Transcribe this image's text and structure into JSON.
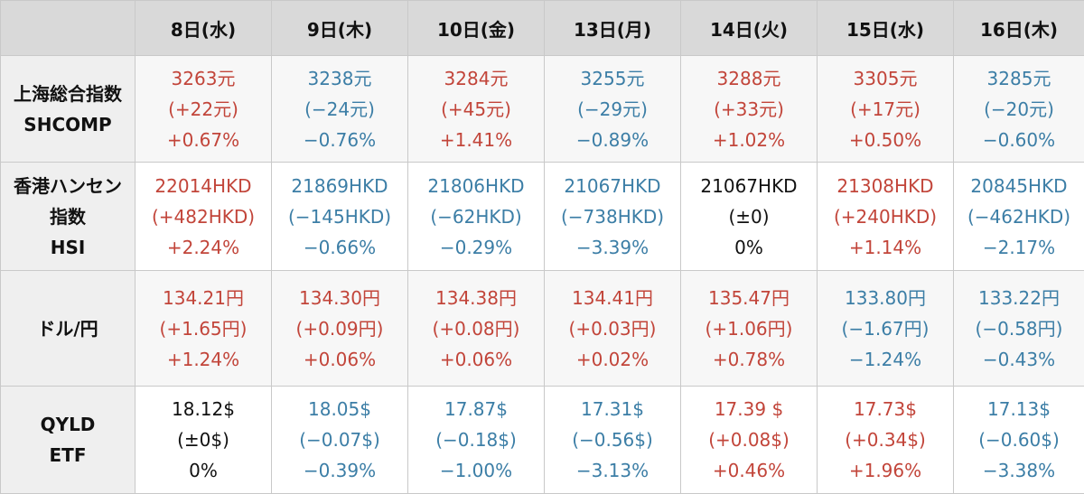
{
  "dates": [
    "8日(水)",
    "9日(木)",
    "10日(金)",
    "13日(月)",
    "14日(火)",
    "15日(水)",
    "16日(木)"
  ],
  "colors": {
    "up": "#c2453a",
    "down": "#3c7ea6",
    "flat": "#111111",
    "header_bg": "#d9d9d9",
    "label_bg": "#efefef"
  },
  "rows": [
    {
      "label_lines": [
        "上海総合指数",
        "SHCOMP"
      ],
      "cells": [
        {
          "trend": "up",
          "value": "3263元",
          "change": "(+22元)",
          "pct": "+0.67%"
        },
        {
          "trend": "down",
          "value": "3238元",
          "change": "(−24元)",
          "pct": "−0.76%"
        },
        {
          "trend": "up",
          "value": "3284元",
          "change": "(+45元)",
          "pct": "+1.41%"
        },
        {
          "trend": "down",
          "value": "3255元",
          "change": "(−29元)",
          "pct": "−0.89%"
        },
        {
          "trend": "up",
          "value": "3288元",
          "change": "(+33元)",
          "pct": "+1.02%"
        },
        {
          "trend": "up",
          "value": "3305元",
          "change": "(+17元)",
          "pct": "+0.50%"
        },
        {
          "trend": "down",
          "value": "3285元",
          "change": "(−20元)",
          "pct": "−0.60%"
        }
      ]
    },
    {
      "label_lines": [
        "香港ハンセン",
        "指数",
        "HSI"
      ],
      "cells": [
        {
          "trend": "up",
          "value": "22014HKD",
          "change": "(+482HKD)",
          "pct": "+2.24%"
        },
        {
          "trend": "down",
          "value": "21869HKD",
          "change": "(−145HKD)",
          "pct": "−0.66%"
        },
        {
          "trend": "down",
          "value": "21806HKD",
          "change": "(−62HKD)",
          "pct": "−0.29%"
        },
        {
          "trend": "down",
          "value": "21067HKD",
          "change": "(−738HKD)",
          "pct": "−3.39%"
        },
        {
          "trend": "flat",
          "value": "21067HKD",
          "change": "(±0)",
          "pct": "0%"
        },
        {
          "trend": "up",
          "value": "21308HKD",
          "change": "(+240HKD)",
          "pct": "+1.14%"
        },
        {
          "trend": "down",
          "value": "20845HKD",
          "change": "(−462HKD)",
          "pct": "−2.17%"
        }
      ]
    },
    {
      "label_lines": [
        "ドル/円"
      ],
      "cells": [
        {
          "trend": "up",
          "value": "134.21円",
          "change": "(+1.65円)",
          "pct": "+1.24%"
        },
        {
          "trend": "up",
          "value": "134.30円",
          "change": "(+0.09円)",
          "pct": "+0.06%"
        },
        {
          "trend": "up",
          "value": "134.38円",
          "change": "(+0.08円)",
          "pct": "+0.06%"
        },
        {
          "trend": "up",
          "value": "134.41円",
          "change": "(+0.03円)",
          "pct": "+0.02%"
        },
        {
          "trend": "up",
          "value": "135.47円",
          "change": "(+1.06円)",
          "pct": "+0.78%"
        },
        {
          "trend": "down",
          "value": "133.80円",
          "change": "(−1.67円)",
          "pct": "−1.24%"
        },
        {
          "trend": "down",
          "value": "133.22円",
          "change": "(−0.58円)",
          "pct": "−0.43%"
        }
      ]
    },
    {
      "label_lines": [
        "QYLD",
        "ETF"
      ],
      "cells": [
        {
          "trend": "flat",
          "value": "18.12$",
          "change": "(±0$)",
          "pct": "0%"
        },
        {
          "trend": "down",
          "value": "18.05$",
          "change": "(−0.07$)",
          "pct": "−0.39%"
        },
        {
          "trend": "down",
          "value": "17.87$",
          "change": "(−0.18$)",
          "pct": "−1.00%"
        },
        {
          "trend": "down",
          "value": "17.31$",
          "change": "(−0.56$)",
          "pct": "−3.13%"
        },
        {
          "trend": "up",
          "value": "17.39 $",
          "change": "(+0.08$)",
          "pct": "+0.46%"
        },
        {
          "trend": "up",
          "value": "17.73$",
          "change": "(+0.34$)",
          "pct": "+1.96%"
        },
        {
          "trend": "down",
          "value": "17.13$",
          "change": "(−0.60$)",
          "pct": "−3.38%"
        }
      ]
    }
  ]
}
